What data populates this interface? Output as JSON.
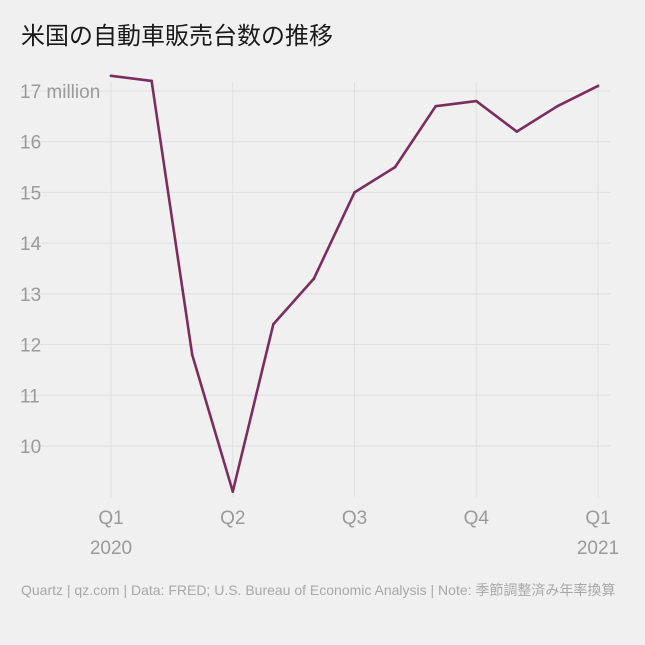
{
  "title": "米国の自動車販売台数の推移",
  "footer": "Quartz | qz.com | Data: FRED; U.S. Bureau of Economic Analysis | Note: 季節調整済み年率換算",
  "chart_data": {
    "type": "line",
    "series": [
      {
        "color": "#7b2d5e",
        "x": [
          "2020-01",
          "2020-02",
          "2020-03",
          "2020-04",
          "2020-05",
          "2020-06",
          "2020-07",
          "2020-08",
          "2020-09",
          "2020-10",
          "2020-11",
          "2020-12",
          "2021-01"
        ],
        "values": [
          17.3,
          17.2,
          11.8,
          9.1,
          12.4,
          13.3,
          15.0,
          15.5,
          16.7,
          16.8,
          16.2,
          16.7,
          17.1
        ]
      }
    ],
    "x_ticks": [
      {
        "x": "2020-01",
        "label": "Q1",
        "sublabel": "2020"
      },
      {
        "x": "2020-04",
        "label": "Q2",
        "sublabel": ""
      },
      {
        "x": "2020-07",
        "label": "Q3",
        "sublabel": ""
      },
      {
        "x": "2020-10",
        "label": "Q4",
        "sublabel": ""
      },
      {
        "x": "2021-01",
        "label": "Q1",
        "sublabel": "2021"
      }
    ],
    "y_ticks": [
      {
        "value": 17,
        "label": "17 million"
      },
      {
        "value": 16,
        "label": "16"
      },
      {
        "value": 15,
        "label": "15"
      },
      {
        "value": 14,
        "label": "14"
      },
      {
        "value": 13,
        "label": "13"
      },
      {
        "value": 12,
        "label": "12"
      },
      {
        "value": 11,
        "label": "11"
      },
      {
        "value": 10,
        "label": "10"
      }
    ],
    "ylim": [
      9,
      17.3
    ],
    "grid": true,
    "colors": {
      "background": "#f0f0f0",
      "grid": "#e0e0e0",
      "ticks": "#9a9a9a"
    }
  }
}
